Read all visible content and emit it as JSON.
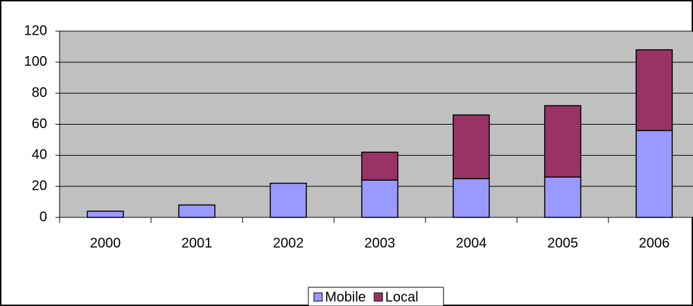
{
  "chart_data": {
    "type": "bar",
    "stacked": true,
    "categories": [
      "2000",
      "2001",
      "2002",
      "2003",
      "2004",
      "2005",
      "2006"
    ],
    "series": [
      {
        "name": "Mobile",
        "color": "#9999ff",
        "values": [
          4,
          8,
          22,
          24,
          25,
          26,
          56
        ]
      },
      {
        "name": "Local",
        "color": "#993366",
        "values": [
          0,
          0,
          0,
          18,
          41,
          46,
          52
        ]
      }
    ],
    "ylim": [
      0,
      120
    ],
    "yticks": [
      0,
      20,
      40,
      60,
      80,
      100,
      120
    ],
    "grid": true,
    "legend": "bottom"
  }
}
